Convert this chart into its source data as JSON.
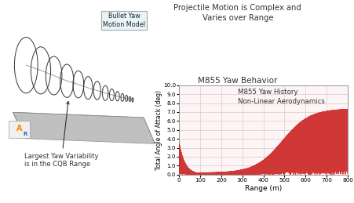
{
  "title_top": "Projectile Motion is Complex and\nVaries over Range",
  "chart_title": "M855 Yaw Behavior",
  "xlabel": "Range (m)",
  "ylabel": "Total Angle of Attack (deg)",
  "legend_text": "M855 Yaw History\nNon-Linear Aerodynamics",
  "annotation_text": "Largest Yaw Variability\nis in the CQB Range",
  "bullet_label": "Bullet Yaw\nMotion Model",
  "xlim": [
    0,
    800
  ],
  "ylim": [
    0.0,
    10.0
  ],
  "ytick_labels": [
    "0.0",
    "1.0",
    "2.0",
    "3.0",
    "4.0",
    "5.0",
    "6.0",
    "7.0",
    "8.0",
    "9.0",
    "10.0"
  ],
  "yticks": [
    0.0,
    1.0,
    2.0,
    3.0,
    4.0,
    5.0,
    6.0,
    7.0,
    8.0,
    9.0,
    10.0
  ],
  "xticks": [
    0,
    100,
    200,
    300,
    400,
    500,
    600,
    700,
    800
  ],
  "line_color": "#cc2222",
  "background_color": "#ffffff",
  "grid_color": "#e0c8c8",
  "plot_bg": "#fdf5f5",
  "label_box_bg": "#e8f4f8",
  "label_box_edge": "#aaaaaa"
}
